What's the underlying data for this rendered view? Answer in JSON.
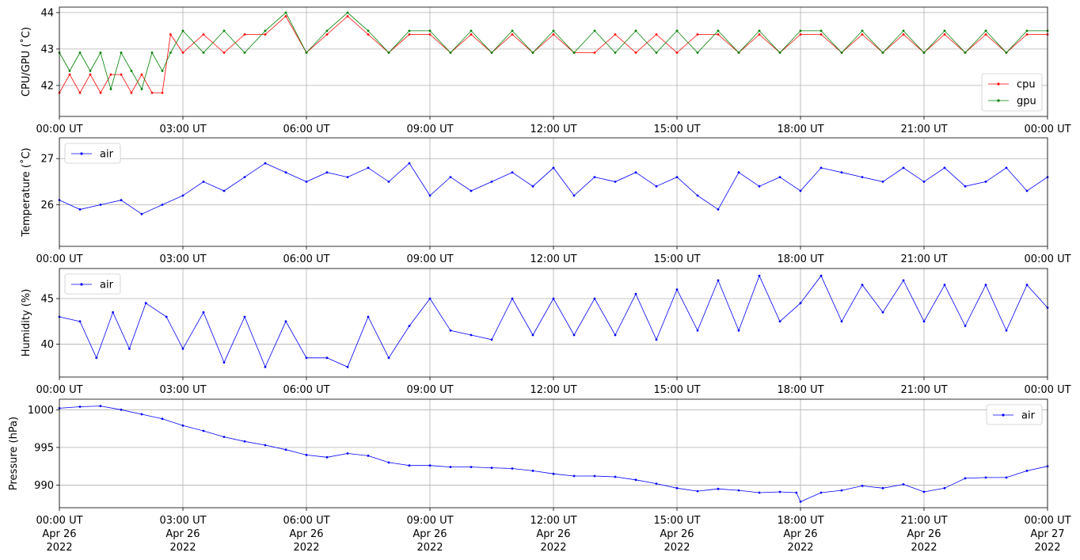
{
  "chart_data": [
    {
      "type": "line",
      "ylabel": "CPU/GPU (˚C)",
      "xlim": [
        0,
        24
      ],
      "ylim": [
        41.15,
        44.15
      ],
      "yticks": [
        42,
        43,
        44
      ],
      "x_tick_labels": [
        "00:00 UT",
        "03:00 UT",
        "06:00 UT",
        "09:00 UT",
        "12:00 UT",
        "15:00 UT",
        "18:00 UT",
        "21:00 UT",
        "00:00 UT"
      ],
      "grid": true,
      "legend_position": "lower-right",
      "series": [
        {
          "name": "cpu",
          "color": "#ff0000",
          "x": [
            0.0,
            0.25,
            0.5,
            0.75,
            1.0,
            1.25,
            1.5,
            1.75,
            2.0,
            2.25,
            2.5,
            2.7,
            3.0,
            3.5,
            4.0,
            4.5,
            5.0,
            5.5,
            6.0,
            6.5,
            7.0,
            7.5,
            8.0,
            8.5,
            9.0,
            9.5,
            10.0,
            10.5,
            11.0,
            11.5,
            12.0,
            12.5,
            13.0,
            13.5,
            14.0,
            14.5,
            15.0,
            15.5,
            16.0,
            16.5,
            17.0,
            17.5,
            18.0,
            18.5,
            19.0,
            19.5,
            20.0,
            20.5,
            21.0,
            21.5,
            22.0,
            22.5,
            23.0,
            23.5,
            24.0
          ],
          "y": [
            41.8,
            42.3,
            41.8,
            42.3,
            41.8,
            42.3,
            42.3,
            41.8,
            42.3,
            41.8,
            41.8,
            43.4,
            42.9,
            43.4,
            42.9,
            43.4,
            43.4,
            43.9,
            42.9,
            43.4,
            43.9,
            43.4,
            42.9,
            43.4,
            43.4,
            42.9,
            43.4,
            42.9,
            43.4,
            42.9,
            43.4,
            42.9,
            42.9,
            43.4,
            42.9,
            43.4,
            42.9,
            43.4,
            43.4,
            42.9,
            43.4,
            42.9,
            43.4,
            43.4,
            42.9,
            43.4,
            42.9,
            43.4,
            42.9,
            43.4,
            42.9,
            43.4,
            42.9,
            43.4,
            43.4
          ]
        },
        {
          "name": "gpu",
          "color": "#008000",
          "x": [
            0.0,
            0.25,
            0.5,
            0.75,
            1.0,
            1.25,
            1.5,
            1.75,
            2.0,
            2.25,
            2.5,
            2.7,
            3.0,
            3.5,
            4.0,
            4.5,
            5.0,
            5.5,
            6.0,
            6.5,
            7.0,
            7.5,
            8.0,
            8.5,
            9.0,
            9.5,
            10.0,
            10.5,
            11.0,
            11.5,
            12.0,
            12.5,
            13.0,
            13.5,
            14.0,
            14.5,
            15.0,
            15.5,
            16.0,
            16.5,
            17.0,
            17.5,
            18.0,
            18.5,
            19.0,
            19.5,
            20.0,
            20.5,
            21.0,
            21.5,
            22.0,
            22.5,
            23.0,
            23.5,
            24.0
          ],
          "y": [
            42.9,
            42.4,
            42.9,
            42.4,
            42.9,
            41.9,
            42.9,
            42.4,
            41.9,
            42.9,
            42.4,
            42.9,
            43.5,
            42.9,
            43.5,
            42.9,
            43.5,
            44.0,
            42.9,
            43.5,
            44.0,
            43.5,
            42.9,
            43.5,
            43.5,
            42.9,
            43.5,
            42.9,
            43.5,
            42.9,
            43.5,
            42.9,
            43.5,
            42.9,
            43.5,
            42.9,
            43.5,
            42.9,
            43.5,
            42.9,
            43.5,
            42.9,
            43.5,
            43.5,
            42.9,
            43.5,
            42.9,
            43.5,
            42.9,
            43.5,
            42.9,
            43.5,
            42.9,
            43.5,
            43.5
          ]
        }
      ]
    },
    {
      "type": "line",
      "ylabel": "Temperature (˚C)",
      "xlim": [
        0,
        24
      ],
      "ylim": [
        25.1,
        27.45
      ],
      "yticks": [
        26,
        27
      ],
      "x_tick_labels": [
        "00:00 UT",
        "03:00 UT",
        "06:00 UT",
        "09:00 UT",
        "12:00 UT",
        "15:00 UT",
        "18:00 UT",
        "21:00 UT",
        "00:00 UT"
      ],
      "grid": true,
      "legend_position": "upper-left",
      "series": [
        {
          "name": "air",
          "color": "#0000ff",
          "x": [
            0.0,
            0.5,
            1.0,
            1.5,
            2.0,
            2.5,
            3.0,
            3.5,
            4.0,
            4.5,
            5.0,
            5.5,
            6.0,
            6.5,
            7.0,
            7.5,
            8.0,
            8.5,
            9.0,
            9.5,
            10.0,
            10.5,
            11.0,
            11.5,
            12.0,
            12.5,
            13.0,
            13.5,
            14.0,
            14.5,
            15.0,
            15.5,
            16.0,
            16.5,
            17.0,
            17.5,
            18.0,
            18.5,
            19.0,
            19.5,
            20.0,
            20.5,
            21.0,
            21.5,
            22.0,
            22.5,
            23.0,
            23.5,
            24.0
          ],
          "y": [
            26.1,
            25.9,
            26.0,
            26.1,
            25.8,
            26.0,
            26.2,
            26.5,
            26.3,
            26.6,
            26.9,
            26.7,
            26.5,
            26.7,
            26.6,
            26.8,
            26.5,
            26.9,
            26.2,
            26.6,
            26.3,
            26.5,
            26.7,
            26.4,
            26.8,
            26.2,
            26.6,
            26.5,
            26.7,
            26.4,
            26.6,
            26.2,
            25.9,
            26.7,
            26.4,
            26.6,
            26.3,
            26.8,
            26.7,
            26.6,
            26.5,
            26.8,
            26.5,
            26.8,
            26.4,
            26.5,
            26.8,
            26.3,
            26.6
          ]
        }
      ]
    },
    {
      "type": "line",
      "ylabel": "Humidity (%)",
      "xlim": [
        0,
        24
      ],
      "ylim": [
        36.4,
        48.3
      ],
      "yticks": [
        40,
        45
      ],
      "x_tick_labels": [
        "00:00 UT",
        "03:00 UT",
        "06:00 UT",
        "09:00 UT",
        "12:00 UT",
        "15:00 UT",
        "18:00 UT",
        "21:00 UT",
        "00:00 UT"
      ],
      "grid": true,
      "legend_position": "upper-left",
      "series": [
        {
          "name": "air",
          "color": "#0000ff",
          "x": [
            0.0,
            0.5,
            0.9,
            1.3,
            1.7,
            2.1,
            2.6,
            3.0,
            3.5,
            4.0,
            4.5,
            5.0,
            5.5,
            6.0,
            6.5,
            7.0,
            7.5,
            8.0,
            8.5,
            9.0,
            9.5,
            10.0,
            10.5,
            11.0,
            11.5,
            12.0,
            12.5,
            13.0,
            13.5,
            14.0,
            14.5,
            15.0,
            15.5,
            16.0,
            16.5,
            17.0,
            17.5,
            18.0,
            18.5,
            19.0,
            19.5,
            20.0,
            20.5,
            21.0,
            21.5,
            22.0,
            22.5,
            23.0,
            23.5,
            24.0
          ],
          "y": [
            43.0,
            42.5,
            38.5,
            43.5,
            39.5,
            44.5,
            43.0,
            39.5,
            43.5,
            38.0,
            43.0,
            37.5,
            42.5,
            38.5,
            38.5,
            37.5,
            43.0,
            38.5,
            42.0,
            45.0,
            41.5,
            41.0,
            40.5,
            45.0,
            41.0,
            45.0,
            41.0,
            45.0,
            41.0,
            45.5,
            40.5,
            46.0,
            41.5,
            47.0,
            41.5,
            47.5,
            42.5,
            44.5,
            47.5,
            42.5,
            46.5,
            43.5,
            47.0,
            42.5,
            46.5,
            42.0,
            46.5,
            41.5,
            46.5,
            44.0
          ]
        }
      ]
    },
    {
      "type": "line",
      "ylabel": "Pressure (hPa)",
      "xlim": [
        0,
        24
      ],
      "ylim": [
        987.0,
        1001.4
      ],
      "yticks": [
        990,
        995,
        1000
      ],
      "x_tick_labels": [
        "00:00 UT",
        "03:00 UT",
        "06:00 UT",
        "09:00 UT",
        "12:00 UT",
        "15:00 UT",
        "18:00 UT",
        "21:00 UT",
        "00:00 UT"
      ],
      "x_date_labels": [
        "Apr 26",
        "Apr 26",
        "Apr 26",
        "Apr 26",
        "Apr 26",
        "Apr 26",
        "Apr 26",
        "Apr 26",
        "Apr 27"
      ],
      "x_year_labels": [
        "2022",
        "2022",
        "2022",
        "2022",
        "2022",
        "2022",
        "2022",
        "2022",
        "2022"
      ],
      "grid": true,
      "legend_position": "upper-right",
      "series": [
        {
          "name": "air",
          "color": "#0000ff",
          "x": [
            0.0,
            0.5,
            1.0,
            1.5,
            2.0,
            2.5,
            3.0,
            3.5,
            4.0,
            4.5,
            5.0,
            5.5,
            6.0,
            6.5,
            7.0,
            7.5,
            8.0,
            8.5,
            9.0,
            9.5,
            10.0,
            10.5,
            11.0,
            11.5,
            12.0,
            12.5,
            13.0,
            13.5,
            14.0,
            14.5,
            15.0,
            15.5,
            16.0,
            16.5,
            17.0,
            17.5,
            17.9,
            18.0,
            18.5,
            19.0,
            19.5,
            20.0,
            20.5,
            21.0,
            21.5,
            22.0,
            22.5,
            23.0,
            23.5,
            24.0
          ],
          "y": [
            1000.2,
            1000.4,
            1000.5,
            1000.0,
            999.4,
            998.8,
            997.9,
            997.2,
            996.4,
            995.8,
            995.3,
            994.7,
            994.0,
            993.7,
            994.2,
            993.9,
            993.0,
            992.6,
            992.6,
            992.4,
            992.4,
            992.3,
            992.2,
            991.9,
            991.5,
            991.2,
            991.2,
            991.1,
            990.7,
            990.2,
            989.6,
            989.2,
            989.5,
            989.3,
            989.0,
            989.1,
            989.0,
            987.8,
            989.0,
            989.3,
            989.9,
            989.6,
            990.1,
            989.1,
            989.6,
            990.9,
            991.0,
            991.0,
            991.9,
            992.5
          ]
        }
      ]
    }
  ]
}
